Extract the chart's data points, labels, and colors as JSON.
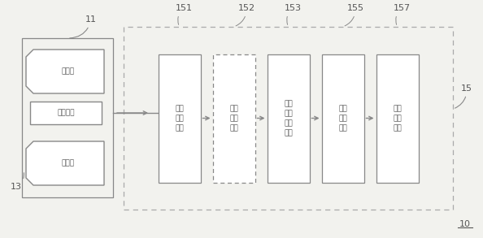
{
  "bg_color": "#f2f2ee",
  "line_color": "#888888",
  "box_color": "#ffffff",
  "text_color": "#555555",
  "fig_width": 5.94,
  "fig_height": 2.93,
  "label_11": "11",
  "label_13": "13",
  "label_15": "15",
  "label_10": "10",
  "ir_source_label": "红外光源",
  "cam_label": "摄像头",
  "right_box_labels": [
    "151",
    "152",
    "153",
    "155",
    "157"
  ],
  "right_box_texts": [
    "图像采集单元",
    "图像增强单元",
    "血管特征提取单元",
    "图像匹配单元",
    "三维重建单元"
  ],
  "box_dashed": [
    false,
    true,
    false,
    false,
    false
  ]
}
